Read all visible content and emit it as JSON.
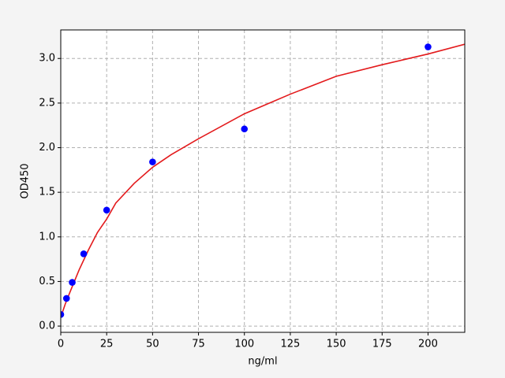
{
  "chart_data": {
    "type": "scatter",
    "xlabel": "ng/ml",
    "ylabel": "OD450",
    "xlim": [
      0,
      220
    ],
    "ylim": [
      -0.07,
      3.32
    ],
    "xticks": [
      0,
      25,
      50,
      75,
      100,
      125,
      150,
      175,
      200
    ],
    "yticks": [
      {
        "value": 0,
        "label": "0.0"
      },
      {
        "value": 0.5,
        "label": "0.5"
      },
      {
        "value": 1,
        "label": "1.0"
      },
      {
        "value": 1.5,
        "label": "1.5"
      },
      {
        "value": 2,
        "label": "2.0"
      },
      {
        "value": 2.5,
        "label": "2.5"
      },
      {
        "value": 3,
        "label": "3.0"
      }
    ],
    "grid": true,
    "series": [
      {
        "style": "line",
        "color": "#e31a1c",
        "x": [
          0,
          2.5,
          5,
          10,
          15,
          20,
          25,
          30,
          40,
          50,
          60,
          75,
          100,
          125,
          150,
          175,
          200,
          220
        ],
        "values": [
          0.1,
          0.25,
          0.38,
          0.63,
          0.85,
          1.05,
          1.2,
          1.38,
          1.6,
          1.78,
          1.92,
          2.1,
          2.38,
          2.6,
          2.8,
          2.93,
          3.05,
          3.16
        ]
      },
      {
        "style": "markers",
        "color": "#0000ff",
        "x": [
          0,
          3.125,
          6.25,
          12.5,
          25,
          50,
          100,
          200
        ],
        "values": [
          0.13,
          0.31,
          0.49,
          0.81,
          1.3,
          1.84,
          2.21,
          3.13
        ]
      }
    ]
  }
}
